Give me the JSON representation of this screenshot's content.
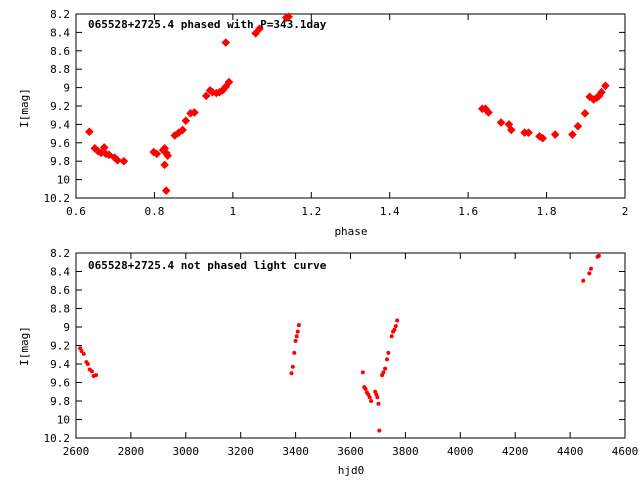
{
  "chart_data": [
    {
      "type": "scatter",
      "title": "065528+2725.4 phased with P=343.1day",
      "xlabel": "phase",
      "ylabel": "I[mag]",
      "xlim": [
        0.6,
        2.0
      ],
      "ylim": [
        8.2,
        10.2
      ],
      "y_inverted": true,
      "xticks": [
        "0.6",
        "0.8",
        "1",
        "1.2",
        "1.4",
        "1.6",
        "1.8",
        "2"
      ],
      "yticks": [
        "8.2",
        "8.4",
        "8.6",
        "8.8",
        "9",
        "9.2",
        "9.4",
        "9.6",
        "9.8",
        "10",
        "10.2"
      ],
      "xtick_values": [
        0.6,
        0.8,
        1.0,
        1.2,
        1.4,
        1.6,
        1.8,
        2.0
      ],
      "ytick_values": [
        8.2,
        8.4,
        8.6,
        8.8,
        9.0,
        9.2,
        9.4,
        9.6,
        9.8,
        10.0,
        10.2
      ],
      "marker": "diamond",
      "color": "#ff0000",
      "points": [
        [
          0.634,
          9.48
        ],
        [
          0.648,
          9.66
        ],
        [
          0.656,
          9.69
        ],
        [
          0.664,
          9.71
        ],
        [
          0.672,
          9.65
        ],
        [
          0.676,
          9.72
        ],
        [
          0.684,
          9.73
        ],
        [
          0.698,
          9.76
        ],
        [
          0.706,
          9.79
        ],
        [
          0.722,
          9.8
        ],
        [
          0.798,
          9.7
        ],
        [
          0.806,
          9.72
        ],
        [
          0.822,
          9.68
        ],
        [
          0.826,
          9.66
        ],
        [
          0.826,
          9.84
        ],
        [
          0.83,
          9.71
        ],
        [
          0.834,
          9.74
        ],
        [
          0.83,
          10.12
        ],
        [
          0.852,
          9.52
        ],
        [
          0.862,
          9.49
        ],
        [
          0.872,
          9.46
        ],
        [
          0.88,
          9.36
        ],
        [
          0.892,
          9.28
        ],
        [
          0.902,
          9.27
        ],
        [
          0.932,
          9.09
        ],
        [
          0.942,
          9.03
        ],
        [
          0.948,
          9.05
        ],
        [
          0.958,
          9.06
        ],
        [
          0.966,
          9.05
        ],
        [
          0.974,
          9.03
        ],
        [
          0.982,
          8.99
        ],
        [
          0.99,
          8.94
        ],
        [
          0.982,
          8.51
        ],
        [
          1.058,
          8.41
        ],
        [
          1.068,
          8.36
        ],
        [
          1.136,
          8.24
        ],
        [
          1.142,
          8.23
        ],
        [
          1.636,
          9.23
        ],
        [
          1.644,
          9.23
        ],
        [
          1.652,
          9.27
        ],
        [
          1.684,
          9.38
        ],
        [
          1.704,
          9.4
        ],
        [
          1.71,
          9.46
        ],
        [
          1.744,
          9.49
        ],
        [
          1.754,
          9.49
        ],
        [
          1.782,
          9.53
        ],
        [
          1.79,
          9.55
        ],
        [
          1.822,
          9.51
        ],
        [
          1.866,
          9.51
        ],
        [
          1.88,
          9.42
        ],
        [
          1.898,
          9.28
        ],
        [
          1.91,
          9.1
        ],
        [
          1.92,
          9.13
        ],
        [
          1.928,
          9.11
        ],
        [
          1.934,
          9.09
        ],
        [
          1.94,
          9.05
        ],
        [
          1.95,
          8.98
        ]
      ]
    },
    {
      "type": "scatter",
      "title": "065528+2725.4 not phased light curve",
      "xlabel": "hjd0",
      "ylabel": "I[mag]",
      "xlim": [
        2600,
        4600
      ],
      "ylim": [
        8.2,
        10.2
      ],
      "y_inverted": true,
      "xticks": [
        "2600",
        "2800",
        "3000",
        "3200",
        "3400",
        "3600",
        "3800",
        "4000",
        "4200",
        "4400",
        "4600"
      ],
      "yticks": [
        "8.2",
        "8.4",
        "8.6",
        "8.8",
        "9",
        "9.2",
        "9.4",
        "9.6",
        "9.8",
        "10",
        "10.2"
      ],
      "xtick_values": [
        2600,
        2800,
        3000,
        3200,
        3400,
        3600,
        3800,
        4000,
        4200,
        4400,
        4600
      ],
      "ytick_values": [
        8.2,
        8.4,
        8.6,
        8.8,
        9.0,
        9.2,
        9.4,
        9.6,
        9.8,
        10.0,
        10.2
      ],
      "marker": "dot",
      "color": "#ff0000",
      "points": [
        [
          2615,
          9.23
        ],
        [
          2620,
          9.26
        ],
        [
          2628,
          9.29
        ],
        [
          2638,
          9.38
        ],
        [
          2643,
          9.4
        ],
        [
          2650,
          9.46
        ],
        [
          2658,
          9.48
        ],
        [
          2664,
          9.53
        ],
        [
          2673,
          9.52
        ],
        [
          3385,
          9.5
        ],
        [
          3390,
          9.43
        ],
        [
          3395,
          9.28
        ],
        [
          3400,
          9.15
        ],
        [
          3404,
          9.1
        ],
        [
          3408,
          9.05
        ],
        [
          3412,
          8.98
        ],
        [
          3645,
          9.49
        ],
        [
          3650,
          9.65
        ],
        [
          3655,
          9.67
        ],
        [
          3660,
          9.71
        ],
        [
          3665,
          9.73
        ],
        [
          3670,
          9.76
        ],
        [
          3675,
          9.8
        ],
        [
          3690,
          9.7
        ],
        [
          3694,
          9.73
        ],
        [
          3698,
          9.76
        ],
        [
          3702,
          9.83
        ],
        [
          3705,
          10.12
        ],
        [
          3715,
          9.52
        ],
        [
          3720,
          9.49
        ],
        [
          3726,
          9.45
        ],
        [
          3733,
          9.35
        ],
        [
          3738,
          9.28
        ],
        [
          3750,
          9.1
        ],
        [
          3755,
          9.05
        ],
        [
          3760,
          9.03
        ],
        [
          3765,
          8.99
        ],
        [
          3770,
          8.93
        ],
        [
          4448,
          8.5
        ],
        [
          4470,
          8.42
        ],
        [
          4476,
          8.37
        ],
        [
          4500,
          8.24
        ],
        [
          4505,
          8.23
        ]
      ]
    }
  ]
}
